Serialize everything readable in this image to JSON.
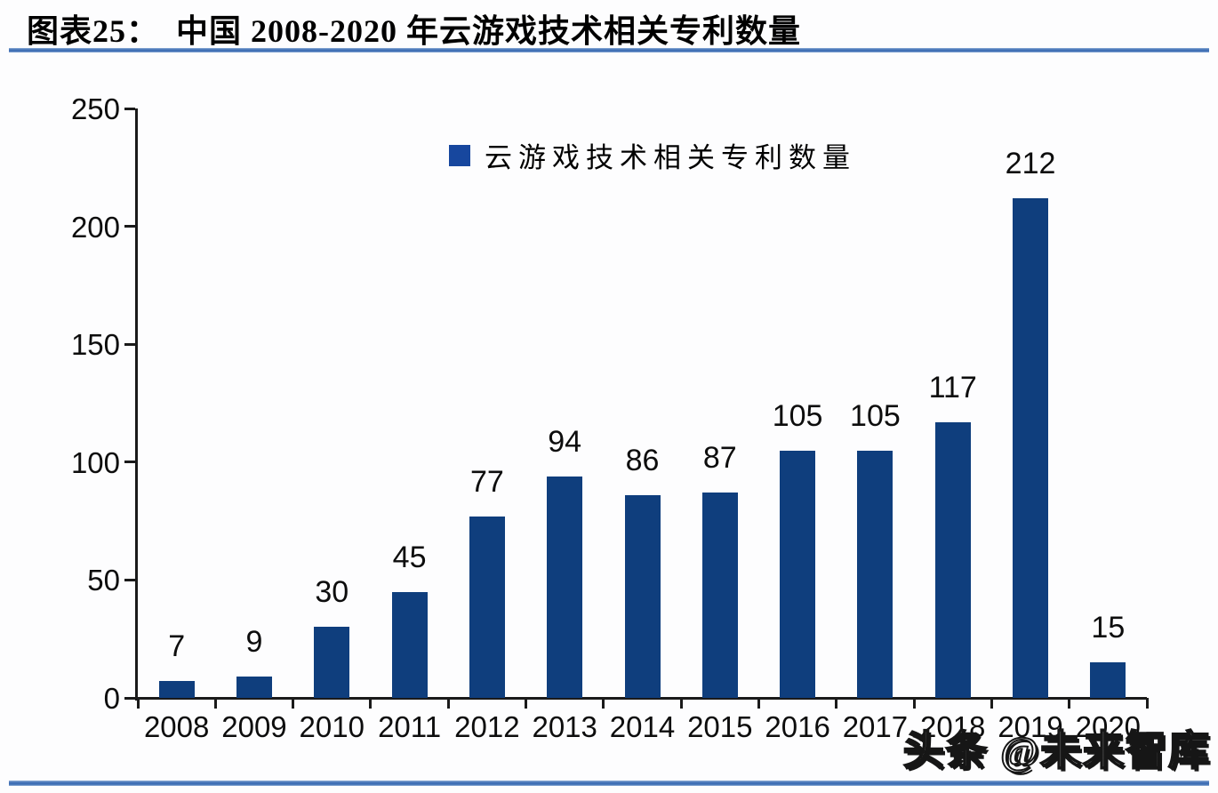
{
  "header": {
    "title": "图表25：　中国 2008-2020 年云游戏技术相关专利数量",
    "rule_color": "#3f6fb5"
  },
  "legend": {
    "label": "云游戏技术相关专利数量",
    "marker_color": "#17479e"
  },
  "watermark": {
    "text": "头条 @未来智库"
  },
  "chart_data": {
    "type": "bar",
    "title": "中国 2008-2020 年云游戏技术相关专利数量",
    "categories": [
      "2008",
      "2009",
      "2010",
      "2011",
      "2012",
      "2013",
      "2014",
      "2015",
      "2016",
      "2017",
      "2018",
      "2019",
      "2020"
    ],
    "values": [
      7,
      9,
      30,
      45,
      77,
      94,
      86,
      87,
      105,
      105,
      117,
      212,
      15
    ],
    "legend_entries": [
      "云游戏技术相关专利数量"
    ],
    "legend_position": "top-center",
    "xlabel": "",
    "ylabel": "",
    "ylim": [
      0,
      250
    ],
    "yticks": [
      0,
      50,
      100,
      150,
      200,
      250
    ],
    "grid": false,
    "data_labels": true,
    "bar_color": "#0f3e7d",
    "axis_color": "#1a1a1a",
    "label_color": "#0d0d0d"
  }
}
